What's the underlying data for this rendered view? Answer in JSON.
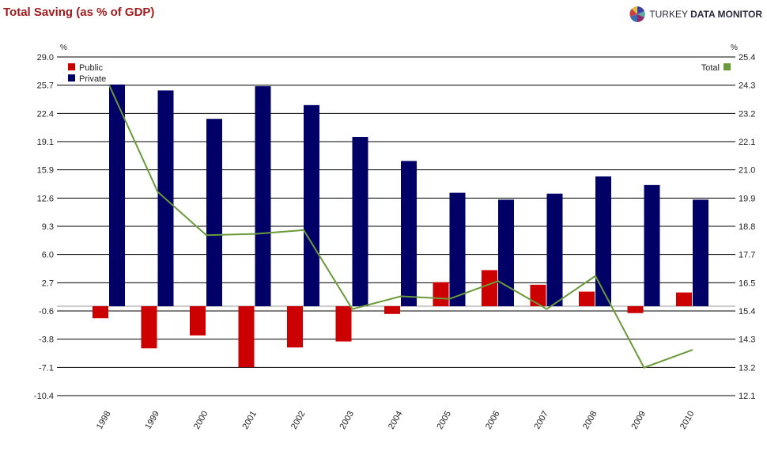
{
  "title": "Total Saving (as % of GDP)",
  "logo": {
    "text_light": "TURKEY",
    "text_bold": "DATA MONITOR"
  },
  "chart_data": {
    "type": "bar+line",
    "title": "Total Saving (as % of GDP)",
    "categories": [
      "1998",
      "1999",
      "2000",
      "2001",
      "2002",
      "2003",
      "2004",
      "2005",
      "2006",
      "2007",
      "2008",
      "2009",
      "2010"
    ],
    "left_axis": {
      "unit": "%",
      "ylim": [
        -10.4,
        29.0
      ],
      "ticks": [
        "29.0",
        "25.7",
        "22.4",
        "19.1",
        "15.9",
        "12.6",
        "9.3",
        "6.0",
        "2.7",
        "-0.6",
        "-3.8",
        "-7.1",
        "-10.4"
      ]
    },
    "right_axis": {
      "unit": "%",
      "ylim": [
        12.1,
        25.4
      ],
      "ticks": [
        "25.4",
        "24.3",
        "23.2",
        "22.1",
        "21.0",
        "19.9",
        "18.8",
        "17.7",
        "16.5",
        "15.4",
        "14.3",
        "13.2",
        "12.1"
      ]
    },
    "grid": true,
    "series": [
      {
        "name": "Public",
        "type": "bar",
        "axis": "left",
        "color": "#cc0000",
        "values": [
          -1.4,
          -4.9,
          -3.4,
          -7.1,
          -4.8,
          -4.1,
          -0.9,
          2.8,
          4.2,
          2.5,
          1.7,
          -0.8,
          1.6
        ]
      },
      {
        "name": "Private",
        "type": "bar",
        "axis": "left",
        "color": "#000066",
        "values": [
          25.8,
          25.1,
          21.8,
          25.6,
          23.4,
          19.7,
          16.9,
          13.2,
          12.4,
          13.1,
          15.1,
          14.1,
          12.4
        ]
      },
      {
        "name": "Total",
        "type": "line",
        "axis": "right",
        "color": "#6a9a3a",
        "values": [
          24.3,
          20.1,
          18.4,
          18.45,
          18.6,
          15.5,
          16.0,
          15.9,
          16.6,
          15.5,
          16.8,
          13.2,
          13.9
        ]
      }
    ],
    "legend": {
      "left": "top-left",
      "right": "top-right"
    }
  }
}
